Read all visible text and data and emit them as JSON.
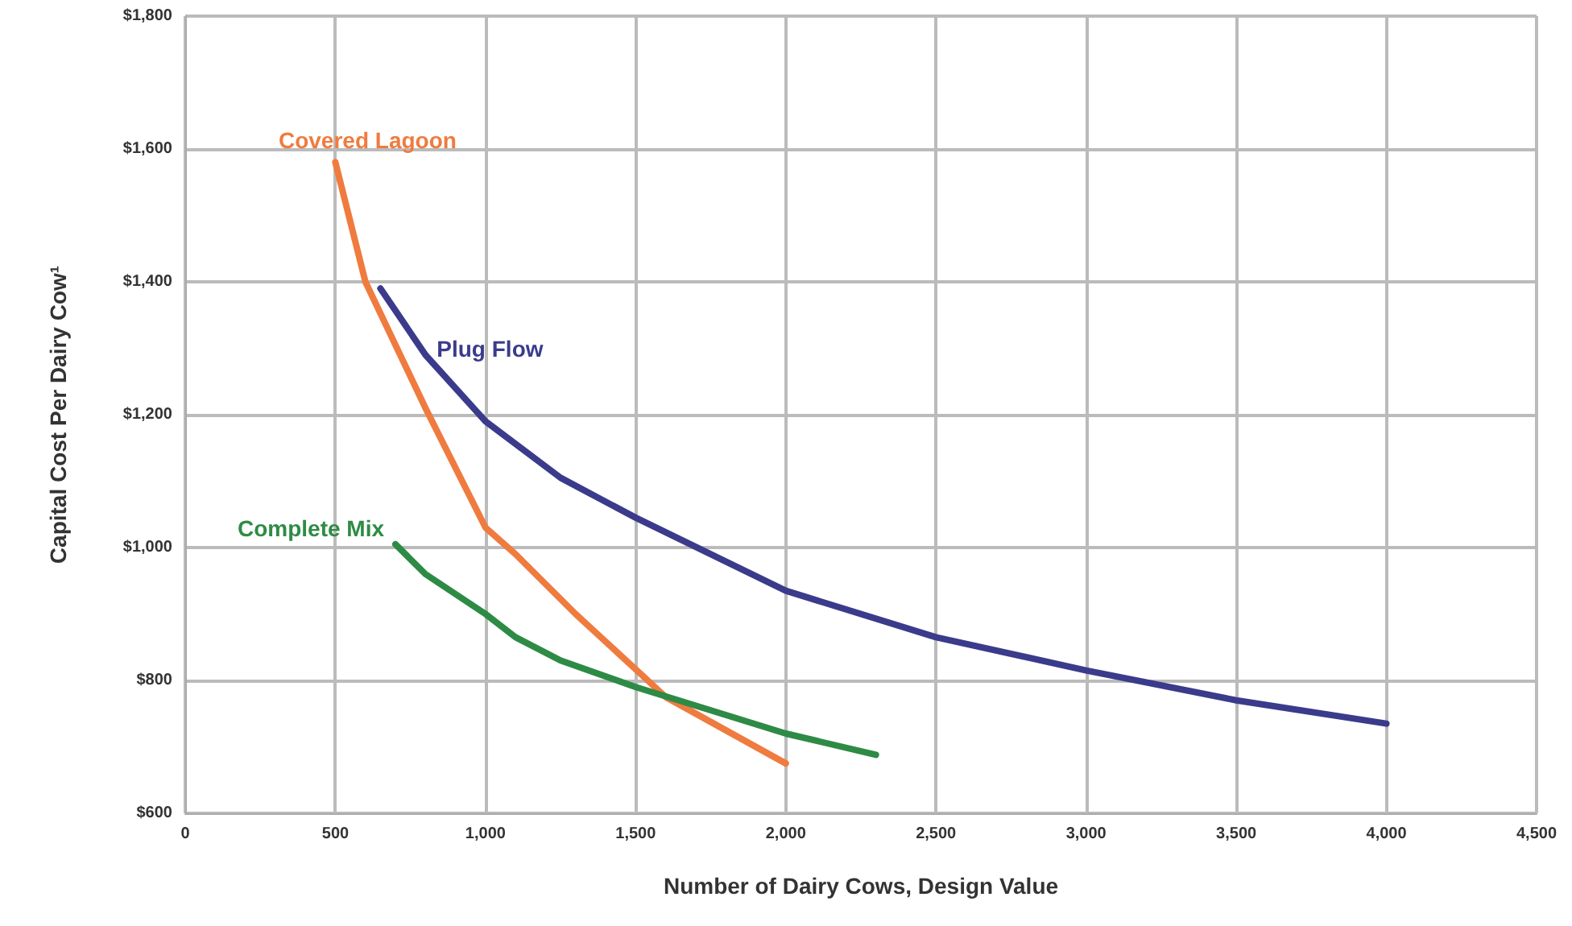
{
  "chart_data": {
    "type": "line",
    "xlabel": "Number of Dairy Cows, Design Value",
    "ylabel": "Capital Cost Per Dairy Cow¹",
    "xlim": [
      0,
      4500
    ],
    "xticks": [
      0,
      500,
      {
        "value": 1000,
        "label": "1,000"
      },
      {
        "value": 1500,
        "label": "1,500"
      },
      {
        "value": 2000,
        "label": "2,000"
      },
      {
        "value": 2500,
        "label": "2,500"
      },
      {
        "value": 3000,
        "label": "3,000"
      },
      {
        "value": 3500,
        "label": "3,500"
      },
      {
        "value": 4000,
        "label": "4,000"
      },
      {
        "value": 4500,
        "label": "4,500"
      }
    ],
    "ylim": [
      600,
      1800
    ],
    "yticks": [
      {
        "value": 600,
        "label": "$600"
      },
      {
        "value": 800,
        "label": "$800"
      },
      {
        "value": 1000,
        "label": "$1,000"
      },
      {
        "value": 1200,
        "label": "$1,200"
      },
      {
        "value": 1400,
        "label": "$1,400"
      },
      {
        "value": 1600,
        "label": "$1,600"
      },
      {
        "value": 1800,
        "label": "$1,800"
      }
    ],
    "grid": true,
    "legend": false,
    "marker": "none",
    "line_style": "solid",
    "series": [
      {
        "name": "Covered Lagoon",
        "color": "#f07b3f",
        "x": [
          500,
          600,
          800,
          1000,
          1100,
          1300,
          1600,
          2000
        ],
        "values": [
          1580,
          1400,
          1210,
          1030,
          990,
          900,
          775,
          675
        ]
      },
      {
        "name": "Plug Flow",
        "color": "#3b3b8c",
        "x": [
          650,
          800,
          1000,
          1250,
          1500,
          2000,
          2500,
          3000,
          3500,
          4000
        ],
        "values": [
          1390,
          1290,
          1190,
          1105,
          1045,
          935,
          865,
          815,
          770,
          735
        ]
      },
      {
        "name": "Complete Mix",
        "color": "#2e8b45",
        "x": [
          700,
          800,
          1000,
          1100,
          1250,
          1500,
          2000,
          2300
        ],
        "values": [
          1005,
          960,
          900,
          865,
          830,
          790,
          720,
          688
        ]
      }
    ]
  }
}
